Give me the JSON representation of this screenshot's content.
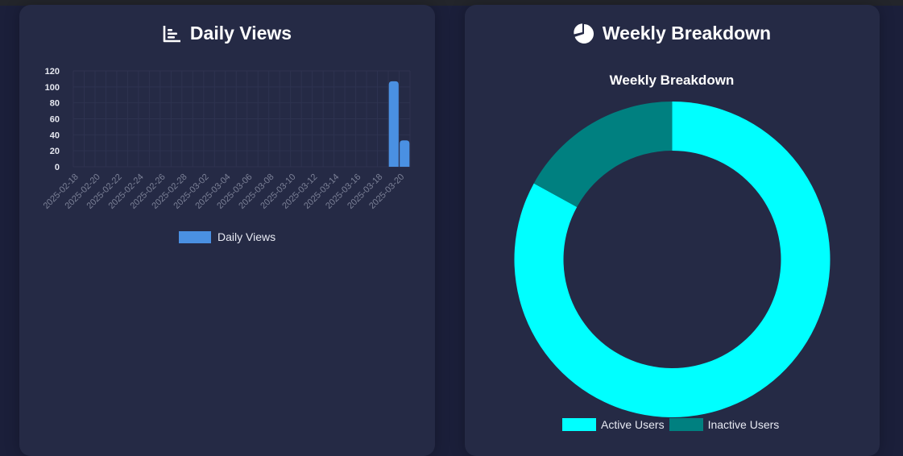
{
  "cards": {
    "daily": {
      "title": "Daily Views",
      "icon": "bar-chart-icon"
    },
    "weekly": {
      "title": "Weekly Breakdown",
      "icon": "pie-chart-icon"
    }
  },
  "colors": {
    "page_bg": "#1b1f3a",
    "card_bg": "#252a45",
    "bar": "#4a90e2",
    "active": "#00ffff",
    "inactive": "#008080"
  },
  "chart_data": [
    {
      "type": "bar",
      "x_tick_labels": [
        "2025-02-18",
        "2025-02-20",
        "2025-02-22",
        "2025-02-24",
        "2025-02-26",
        "2025-02-28",
        "2025-03-02",
        "2025-03-04",
        "2025-03-06",
        "2025-03-08",
        "2025-03-10",
        "2025-03-12",
        "2025-03-14",
        "2025-03-16",
        "2025-03-18",
        "2025-03-20"
      ],
      "x_start": "2025-02-18",
      "x_end": "2025-03-21",
      "values": [
        {
          "date": "2025-03-19",
          "value": 107
        },
        {
          "date": "2025-03-20",
          "value": 33
        }
      ],
      "series": [
        {
          "name": "Daily Views"
        }
      ],
      "ylim": [
        0,
        120
      ],
      "y_ticks": [
        "0",
        "20",
        "40",
        "60",
        "80",
        "100",
        "120"
      ],
      "grid": true,
      "legend": "bottom"
    },
    {
      "type": "pie",
      "title": "Weekly Breakdown",
      "labels": [
        "Active Users",
        "Inactive Users"
      ],
      "values": [
        83,
        17
      ],
      "colors": [
        "#00ffff",
        "#008080"
      ],
      "legend": "bottom"
    }
  ]
}
